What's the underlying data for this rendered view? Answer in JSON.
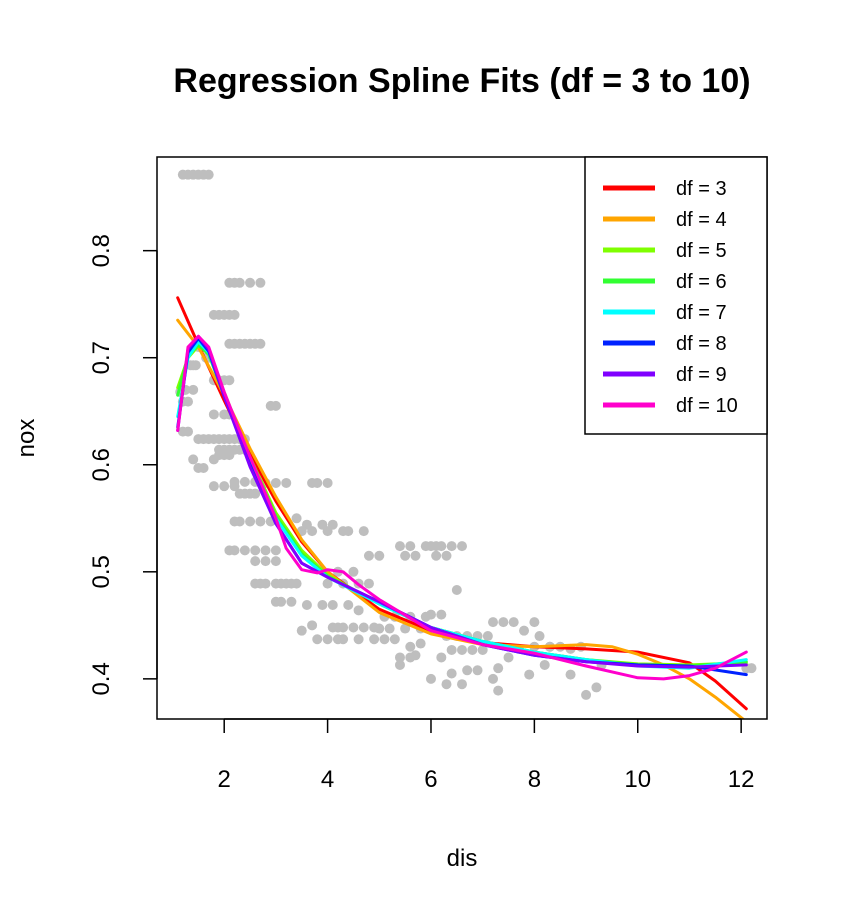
{
  "chart_data": {
    "type": "scatter",
    "title": "Regression Spline Fits (df = 3 to 10)",
    "xlabel": "dis",
    "ylabel": "nox",
    "xlim": [
      0.7,
      12.5
    ],
    "ylim": [
      0.3625,
      0.8875
    ],
    "x_ticks": [
      2,
      4,
      6,
      8,
      10,
      12
    ],
    "y_ticks": [
      0.4,
      0.5,
      0.6,
      0.7,
      0.8
    ],
    "x_tick_labels": [
      "2",
      "4",
      "6",
      "8",
      "10",
      "12"
    ],
    "y_tick_labels": [
      "0.4",
      "0.5",
      "0.6",
      "0.7",
      "0.8"
    ],
    "legend_position": "top-right",
    "point_color": "#bebebe",
    "points": [
      [
        1.2,
        0.871
      ],
      [
        1.3,
        0.871
      ],
      [
        1.4,
        0.871
      ],
      [
        1.5,
        0.871
      ],
      [
        1.6,
        0.871
      ],
      [
        1.7,
        0.871
      ],
      [
        1.15,
        0.668
      ],
      [
        1.2,
        0.659
      ],
      [
        1.3,
        0.659
      ],
      [
        1.25,
        0.67
      ],
      [
        1.4,
        0.67
      ],
      [
        1.35,
        0.693
      ],
      [
        1.4,
        0.693
      ],
      [
        1.45,
        0.693
      ],
      [
        1.5,
        0.71
      ],
      [
        1.6,
        0.71
      ],
      [
        1.65,
        0.7
      ],
      [
        1.7,
        0.7
      ],
      [
        1.2,
        0.631
      ],
      [
        1.3,
        0.631
      ],
      [
        1.5,
        0.624
      ],
      [
        1.6,
        0.624
      ],
      [
        1.7,
        0.624
      ],
      [
        1.8,
        0.624
      ],
      [
        1.4,
        0.605
      ],
      [
        1.5,
        0.597
      ],
      [
        1.6,
        0.597
      ],
      [
        1.8,
        0.605
      ],
      [
        1.9,
        0.609
      ],
      [
        2.0,
        0.609
      ],
      [
        2.1,
        0.609
      ],
      [
        1.9,
        0.614
      ],
      [
        2.0,
        0.614
      ],
      [
        2.1,
        0.614
      ],
      [
        2.2,
        0.614
      ],
      [
        2.3,
        0.614
      ],
      [
        2.4,
        0.614
      ],
      [
        1.9,
        0.624
      ],
      [
        2.0,
        0.624
      ],
      [
        2.1,
        0.624
      ],
      [
        2.2,
        0.624
      ],
      [
        2.3,
        0.624
      ],
      [
        2.4,
        0.624
      ],
      [
        1.8,
        0.58
      ],
      [
        2.0,
        0.58
      ],
      [
        2.2,
        0.58
      ],
      [
        2.3,
        0.573
      ],
      [
        2.4,
        0.573
      ],
      [
        2.5,
        0.573
      ],
      [
        2.6,
        0.573
      ],
      [
        2.2,
        0.584
      ],
      [
        2.4,
        0.584
      ],
      [
        2.6,
        0.584
      ],
      [
        1.8,
        0.647
      ],
      [
        2.0,
        0.647
      ],
      [
        2.1,
        0.647
      ],
      [
        1.8,
        0.679
      ],
      [
        1.9,
        0.679
      ],
      [
        2.0,
        0.679
      ],
      [
        2.1,
        0.679
      ],
      [
        2.1,
        0.713
      ],
      [
        2.2,
        0.713
      ],
      [
        2.3,
        0.713
      ],
      [
        2.4,
        0.713
      ],
      [
        2.5,
        0.713
      ],
      [
        2.6,
        0.713
      ],
      [
        2.7,
        0.713
      ],
      [
        1.8,
        0.74
      ],
      [
        1.9,
        0.74
      ],
      [
        2.0,
        0.74
      ],
      [
        2.1,
        0.74
      ],
      [
        2.2,
        0.74
      ],
      [
        2.1,
        0.77
      ],
      [
        2.2,
        0.77
      ],
      [
        2.3,
        0.77
      ],
      [
        2.5,
        0.77
      ],
      [
        2.7,
        0.77
      ],
      [
        2.2,
        0.547
      ],
      [
        2.3,
        0.547
      ],
      [
        2.5,
        0.547
      ],
      [
        2.7,
        0.547
      ],
      [
        2.9,
        0.547
      ],
      [
        2.1,
        0.52
      ],
      [
        2.2,
        0.52
      ],
      [
        2.4,
        0.52
      ],
      [
        2.6,
        0.52
      ],
      [
        2.8,
        0.52
      ],
      [
        3.0,
        0.52
      ],
      [
        2.6,
        0.51
      ],
      [
        2.8,
        0.51
      ],
      [
        3.0,
        0.51
      ],
      [
        2.6,
        0.489
      ],
      [
        2.7,
        0.489
      ],
      [
        2.8,
        0.489
      ],
      [
        3.0,
        0.489
      ],
      [
        3.1,
        0.489
      ],
      [
        3.2,
        0.489
      ],
      [
        3.3,
        0.489
      ],
      [
        3.4,
        0.489
      ],
      [
        3.0,
        0.472
      ],
      [
        3.1,
        0.472
      ],
      [
        3.3,
        0.472
      ],
      [
        2.8,
        0.583
      ],
      [
        3.0,
        0.583
      ],
      [
        3.2,
        0.583
      ],
      [
        3.7,
        0.583
      ],
      [
        3.8,
        0.583
      ],
      [
        4.0,
        0.583
      ],
      [
        2.9,
        0.655
      ],
      [
        3.0,
        0.655
      ],
      [
        3.4,
        0.55
      ],
      [
        3.6,
        0.544
      ],
      [
        3.9,
        0.544
      ],
      [
        4.1,
        0.544
      ],
      [
        4.3,
        0.538
      ],
      [
        3.5,
        0.538
      ],
      [
        3.7,
        0.538
      ],
      [
        4.0,
        0.538
      ],
      [
        4.4,
        0.538
      ],
      [
        4.7,
        0.538
      ],
      [
        3.5,
        0.445
      ],
      [
        3.7,
        0.45
      ],
      [
        3.8,
        0.437
      ],
      [
        4.0,
        0.437
      ],
      [
        4.2,
        0.437
      ],
      [
        4.3,
        0.437
      ],
      [
        4.1,
        0.448
      ],
      [
        4.2,
        0.448
      ],
      [
        4.3,
        0.448
      ],
      [
        4.5,
        0.448
      ],
      [
        4.7,
        0.448
      ],
      [
        4.9,
        0.448
      ],
      [
        3.6,
        0.469
      ],
      [
        3.9,
        0.469
      ],
      [
        4.1,
        0.469
      ],
      [
        4.4,
        0.469
      ],
      [
        4.6,
        0.464
      ],
      [
        4.0,
        0.489
      ],
      [
        4.3,
        0.489
      ],
      [
        4.6,
        0.489
      ],
      [
        4.8,
        0.489
      ],
      [
        4.2,
        0.5
      ],
      [
        4.5,
        0.5
      ],
      [
        4.8,
        0.515
      ],
      [
        5.0,
        0.515
      ],
      [
        4.6,
        0.437
      ],
      [
        4.9,
        0.437
      ],
      [
        5.1,
        0.437
      ],
      [
        5.3,
        0.437
      ],
      [
        5.0,
        0.447
      ],
      [
        5.2,
        0.447
      ],
      [
        5.5,
        0.447
      ],
      [
        5.8,
        0.447
      ],
      [
        5.1,
        0.458
      ],
      [
        5.3,
        0.458
      ],
      [
        5.6,
        0.458
      ],
      [
        5.9,
        0.458
      ],
      [
        5.4,
        0.42
      ],
      [
        5.6,
        0.42
      ],
      [
        5.7,
        0.422
      ],
      [
        6.0,
        0.4
      ],
      [
        6.2,
        0.42
      ],
      [
        6.4,
        0.405
      ],
      [
        5.4,
        0.413
      ],
      [
        5.6,
        0.43
      ],
      [
        5.8,
        0.433
      ],
      [
        5.5,
        0.515
      ],
      [
        5.7,
        0.515
      ],
      [
        5.4,
        0.524
      ],
      [
        5.6,
        0.524
      ],
      [
        5.9,
        0.524
      ],
      [
        6.0,
        0.524
      ],
      [
        6.1,
        0.524
      ],
      [
        6.2,
        0.524
      ],
      [
        6.4,
        0.524
      ],
      [
        6.6,
        0.524
      ],
      [
        6.1,
        0.515
      ],
      [
        6.3,
        0.515
      ],
      [
        6.0,
        0.46
      ],
      [
        6.2,
        0.46
      ],
      [
        6.5,
        0.483
      ],
      [
        6.3,
        0.44
      ],
      [
        6.5,
        0.44
      ],
      [
        6.7,
        0.44
      ],
      [
        6.9,
        0.44
      ],
      [
        7.1,
        0.44
      ],
      [
        6.4,
        0.427
      ],
      [
        6.6,
        0.427
      ],
      [
        6.8,
        0.427
      ],
      [
        7.0,
        0.427
      ],
      [
        6.3,
        0.395
      ],
      [
        6.6,
        0.395
      ],
      [
        6.7,
        0.408
      ],
      [
        6.9,
        0.408
      ],
      [
        7.2,
        0.453
      ],
      [
        7.4,
        0.453
      ],
      [
        7.6,
        0.453
      ],
      [
        7.8,
        0.445
      ],
      [
        8.0,
        0.453
      ],
      [
        7.2,
        0.4
      ],
      [
        7.3,
        0.389
      ],
      [
        7.3,
        0.41
      ],
      [
        7.5,
        0.42
      ],
      [
        7.7,
        0.428
      ],
      [
        7.9,
        0.404
      ],
      [
        8.1,
        0.44
      ],
      [
        8.0,
        0.43
      ],
      [
        8.3,
        0.43
      ],
      [
        8.5,
        0.43
      ],
      [
        8.7,
        0.428
      ],
      [
        8.2,
        0.413
      ],
      [
        8.3,
        0.43
      ],
      [
        8.7,
        0.404
      ],
      [
        8.9,
        0.43
      ],
      [
        9.0,
        0.385
      ],
      [
        9.2,
        0.392
      ],
      [
        9.3,
        0.413
      ],
      [
        12.1,
        0.41
      ],
      [
        12.2,
        0.41
      ]
    ],
    "series": [
      {
        "name": "df = 3",
        "color": "#ff0000",
        "x": [
          1.1,
          1.5,
          2.0,
          2.5,
          3.0,
          3.5,
          4.0,
          5.0,
          6.0,
          7.0,
          8.0,
          9.0,
          10.0,
          11.0,
          11.5,
          12.1
        ],
        "y": [
          0.756,
          0.712,
          0.66,
          0.61,
          0.566,
          0.528,
          0.5,
          0.465,
          0.445,
          0.434,
          0.43,
          0.428,
          0.425,
          0.415,
          0.398,
          0.372
        ]
      },
      {
        "name": "df = 4",
        "color": "#ffa500",
        "x": [
          1.1,
          1.5,
          2.0,
          2.5,
          3.0,
          3.5,
          4.0,
          5.0,
          6.0,
          7.0,
          8.0,
          9.0,
          9.5,
          10.0,
          10.5,
          11.0,
          11.5,
          12.1
        ],
        "y": [
          0.735,
          0.71,
          0.665,
          0.615,
          0.57,
          0.53,
          0.5,
          0.462,
          0.442,
          0.432,
          0.43,
          0.432,
          0.43,
          0.423,
          0.413,
          0.4,
          0.383,
          0.36
        ]
      },
      {
        "name": "df = 5",
        "color": "#7fff00",
        "x": [
          1.1,
          1.3,
          1.5,
          1.7,
          2.0,
          2.5,
          3.0,
          3.5,
          4.0,
          5.0,
          6.0,
          7.0,
          8.0,
          9.0,
          10.0,
          11.0,
          12.1
        ],
        "y": [
          0.672,
          0.7,
          0.711,
          0.705,
          0.668,
          0.607,
          0.555,
          0.52,
          0.497,
          0.47,
          0.448,
          0.435,
          0.425,
          0.418,
          0.414,
          0.413,
          0.415
        ]
      },
      {
        "name": "df = 6",
        "color": "#32ff32",
        "x": [
          1.1,
          1.3,
          1.5,
          1.7,
          2.0,
          2.5,
          3.0,
          3.5,
          4.0,
          5.0,
          6.0,
          7.0,
          8.0,
          9.0,
          10.0,
          11.0,
          12.1
        ],
        "y": [
          0.665,
          0.702,
          0.712,
          0.703,
          0.665,
          0.605,
          0.552,
          0.517,
          0.496,
          0.47,
          0.448,
          0.435,
          0.425,
          0.418,
          0.413,
          0.412,
          0.416
        ]
      },
      {
        "name": "df = 7",
        "color": "#00ffff",
        "x": [
          1.1,
          1.3,
          1.5,
          1.7,
          2.0,
          2.5,
          3.0,
          3.5,
          4.0,
          5.0,
          6.0,
          7.0,
          8.0,
          9.0,
          10.0,
          11.0,
          12.1
        ],
        "y": [
          0.645,
          0.7,
          0.715,
          0.705,
          0.665,
          0.603,
          0.55,
          0.515,
          0.495,
          0.47,
          0.448,
          0.435,
          0.425,
          0.418,
          0.412,
          0.41,
          0.418
        ]
      },
      {
        "name": "df = 8",
        "color": "#0022ff",
        "x": [
          1.1,
          1.3,
          1.5,
          1.7,
          2.0,
          2.5,
          3.0,
          3.5,
          4.0,
          5.0,
          6.0,
          7.0,
          8.0,
          9.0,
          10.0,
          11.0,
          12.1
        ],
        "y": [
          0.635,
          0.705,
          0.718,
          0.706,
          0.664,
          0.6,
          0.545,
          0.508,
          0.495,
          0.472,
          0.448,
          0.432,
          0.422,
          0.416,
          0.413,
          0.412,
          0.404
        ]
      },
      {
        "name": "df = 9",
        "color": "#8000ff",
        "x": [
          1.1,
          1.3,
          1.5,
          1.7,
          2.0,
          2.5,
          3.0,
          3.5,
          4.0,
          5.0,
          6.0,
          7.0,
          8.0,
          9.0,
          10.0,
          11.0,
          12.1
        ],
        "y": [
          0.632,
          0.708,
          0.72,
          0.708,
          0.664,
          0.598,
          0.545,
          0.508,
          0.495,
          0.472,
          0.448,
          0.432,
          0.422,
          0.416,
          0.412,
          0.411,
          0.413
        ]
      },
      {
        "name": "df = 10",
        "color": "#ff00cc",
        "x": [
          1.1,
          1.3,
          1.5,
          1.7,
          2.0,
          2.5,
          3.0,
          3.2,
          3.5,
          3.8,
          4.0,
          4.3,
          4.6,
          5.0,
          6.0,
          7.0,
          8.0,
          9.0,
          10.0,
          10.5,
          11.0,
          11.5,
          12.1
        ],
        "y": [
          0.632,
          0.71,
          0.72,
          0.71,
          0.668,
          0.607,
          0.55,
          0.522,
          0.502,
          0.499,
          0.502,
          0.5,
          0.488,
          0.474,
          0.445,
          0.432,
          0.424,
          0.412,
          0.401,
          0.4,
          0.403,
          0.41,
          0.425
        ]
      }
    ]
  }
}
